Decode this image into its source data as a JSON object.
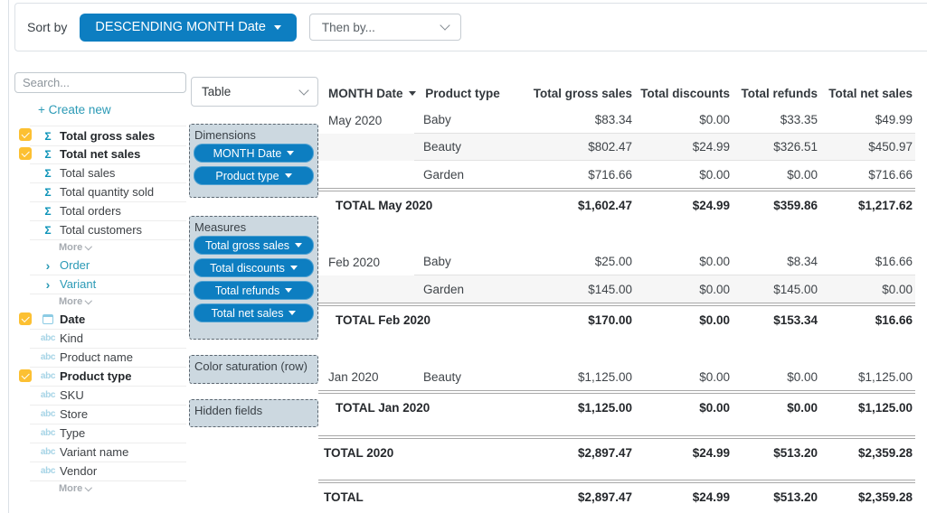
{
  "colors": {
    "accent_blue": "#0d7ec1",
    "checkbox_yellow": "#fcc032",
    "link_teal": "#2b9ab6",
    "zone_background": "#ccd8e0",
    "row_stripe": "#f6f6f6"
  },
  "sort_bar": {
    "label": "Sort by",
    "primary": "DESCENDING MONTH Date",
    "secondary_placeholder": "Then by..."
  },
  "sidebar": {
    "search_placeholder": "Search...",
    "create_new": "+ Create new",
    "items": [
      {
        "type": "field",
        "icon": "sigma",
        "label": "Total gross sales",
        "checked": true,
        "bold": true
      },
      {
        "type": "field",
        "icon": "sigma",
        "label": "Total net sales",
        "checked": true,
        "bold": true
      },
      {
        "type": "field",
        "icon": "sigma",
        "label": "Total sales"
      },
      {
        "type": "field",
        "icon": "sigma",
        "label": "Total quantity sold"
      },
      {
        "type": "field",
        "icon": "sigma",
        "label": "Total orders"
      },
      {
        "type": "field",
        "icon": "sigma",
        "label": "Total customers"
      },
      {
        "type": "more",
        "label": "More"
      },
      {
        "type": "group",
        "icon": "chevron",
        "label": "Order"
      },
      {
        "type": "group",
        "icon": "chevron",
        "label": "Variant"
      },
      {
        "type": "more",
        "label": "More"
      },
      {
        "type": "field",
        "icon": "calendar",
        "label": "Date",
        "checked": true,
        "bold": true
      },
      {
        "type": "field",
        "icon": "abc",
        "label": "Kind"
      },
      {
        "type": "field",
        "icon": "abc",
        "label": "Product name"
      },
      {
        "type": "field",
        "icon": "abc",
        "label": "Product type",
        "checked": true,
        "bold": true
      },
      {
        "type": "field",
        "icon": "abc",
        "label": "SKU"
      },
      {
        "type": "field",
        "icon": "abc",
        "label": "Store"
      },
      {
        "type": "field",
        "icon": "abc",
        "label": "Type"
      },
      {
        "type": "field",
        "icon": "abc",
        "label": "Variant name"
      },
      {
        "type": "field",
        "icon": "abc",
        "label": "Vendor"
      },
      {
        "type": "more",
        "label": "More"
      }
    ]
  },
  "builder": {
    "view_selector": "Table",
    "sections": [
      {
        "title": "Dimensions",
        "pills": [
          "MONTH Date",
          "Product type"
        ]
      },
      {
        "title": "Measures",
        "pills": [
          "Total gross sales",
          "Total discounts",
          "Total refunds",
          "Total net sales"
        ]
      },
      {
        "title": "Color saturation (row)",
        "pills": []
      },
      {
        "title": "Hidden fields",
        "pills": []
      }
    ]
  },
  "table": {
    "columns": [
      "MONTH Date",
      "Product type",
      "Total gross sales",
      "Total discounts",
      "Total refunds",
      "Total net sales"
    ],
    "groups": [
      {
        "month": "May 2020",
        "rows": [
          {
            "product": "Baby",
            "values": [
              "$83.34",
              "$0.00",
              "$33.35",
              "$49.99"
            ]
          },
          {
            "product": "Beauty",
            "values": [
              "$802.47",
              "$24.99",
              "$326.51",
              "$450.97"
            ]
          },
          {
            "product": "Garden",
            "values": [
              "$716.66",
              "$0.00",
              "$0.00",
              "$716.66"
            ]
          }
        ],
        "total": {
          "label": "TOTAL May 2020",
          "values": [
            "$1,602.47",
            "$24.99",
            "$359.86",
            "$1,217.62"
          ]
        }
      },
      {
        "month": "Feb 2020",
        "rows": [
          {
            "product": "Baby",
            "values": [
              "$25.00",
              "$0.00",
              "$8.34",
              "$16.66"
            ]
          },
          {
            "product": "Garden",
            "values": [
              "$145.00",
              "$0.00",
              "$145.00",
              "$0.00"
            ]
          }
        ],
        "total": {
          "label": "TOTAL Feb 2020",
          "values": [
            "$170.00",
            "$0.00",
            "$153.34",
            "$16.66"
          ]
        }
      },
      {
        "month": "Jan 2020",
        "rows": [
          {
            "product": "Beauty",
            "values": [
              "$1,125.00",
              "$0.00",
              "$0.00",
              "$1,125.00"
            ]
          }
        ],
        "total": {
          "label": "TOTAL Jan 2020",
          "values": [
            "$1,125.00",
            "$0.00",
            "$0.00",
            "$1,125.00"
          ]
        }
      }
    ],
    "grand_totals": [
      {
        "label": "TOTAL 2020",
        "values": [
          "$2,897.47",
          "$24.99",
          "$513.20",
          "$2,359.28"
        ]
      },
      {
        "label": "TOTAL",
        "values": [
          "$2,897.47",
          "$24.99",
          "$513.20",
          "$2,359.28"
        ]
      }
    ]
  }
}
